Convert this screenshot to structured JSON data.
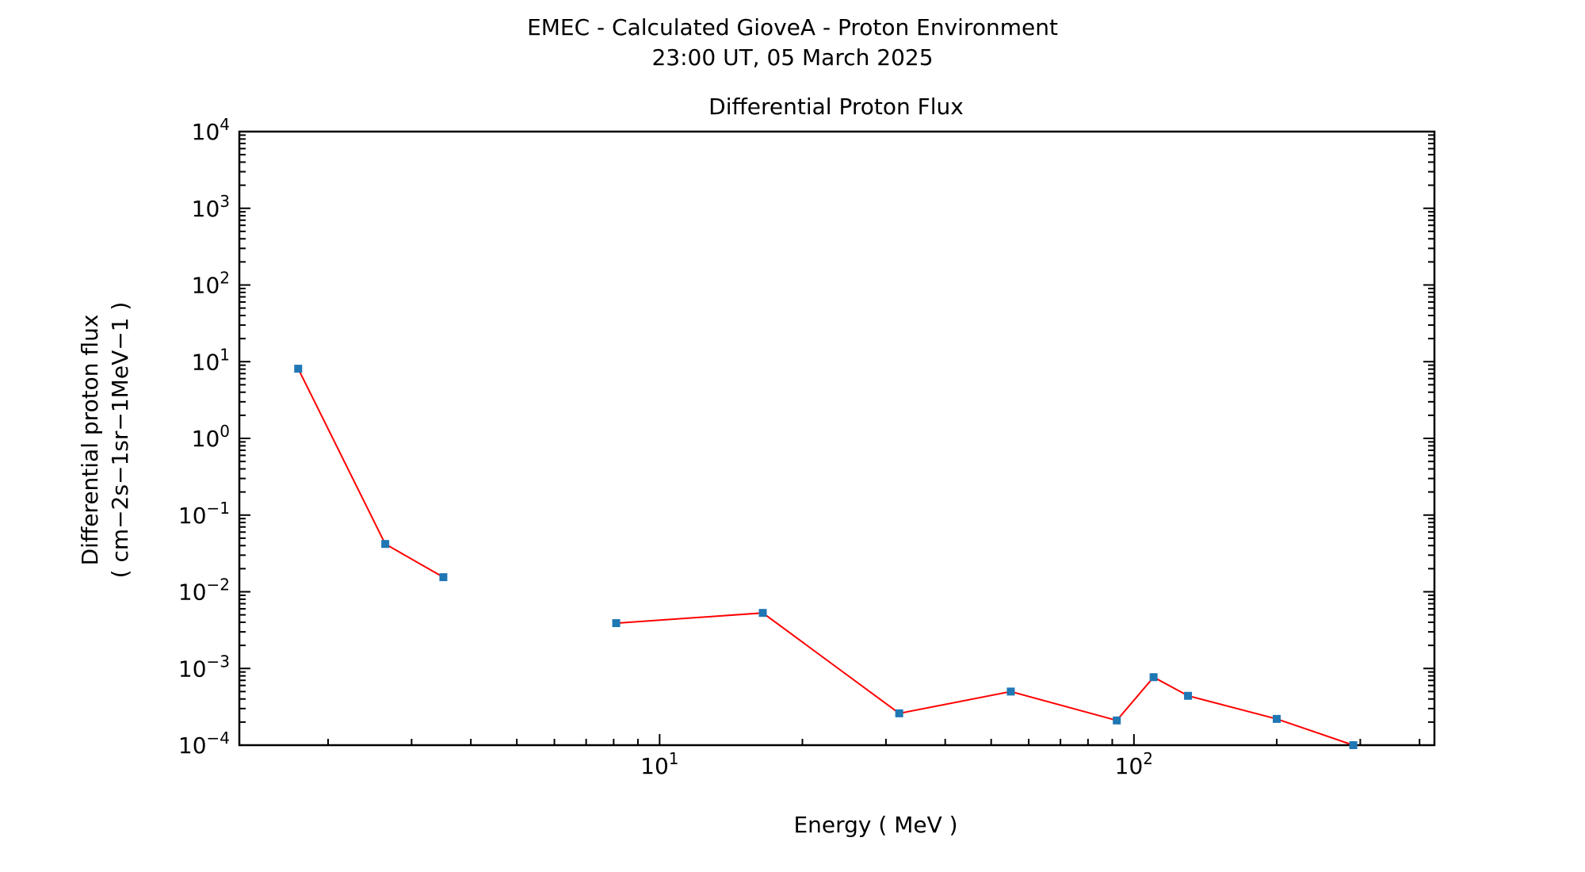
{
  "figure": {
    "title": "EMEC - Calculated GioveA - Proton Environment",
    "subtitle": "23:00 UT, 05 March 2025"
  },
  "colors": {
    "line": "#ff0000",
    "marker": "#1f77b4",
    "axes": "#000000"
  },
  "chart_data": {
    "type": "line",
    "title": "Differential Proton Flux",
    "xlabel": "Energy ( MeV )",
    "ylabel": "Differential proton flux",
    "ylabel_units": "( cm−2s−1sr−1MeV−1 )",
    "xscale": "log",
    "yscale": "log",
    "xlim": [
      1.3,
      430
    ],
    "ylim": [
      0.0001,
      10000
    ],
    "grid": false,
    "legend": "none",
    "x_tick_labels": [
      {
        "value": 10,
        "base": "10",
        "exp": "1"
      },
      {
        "value": 100,
        "base": "10",
        "exp": "2"
      }
    ],
    "y_tick_labels": [
      {
        "value": 10000,
        "base": "10",
        "exp": "4"
      },
      {
        "value": 1000,
        "base": "10",
        "exp": "3"
      },
      {
        "value": 100,
        "base": "10",
        "exp": "2"
      },
      {
        "value": 10,
        "base": "10",
        "exp": "1"
      },
      {
        "value": 1,
        "base": "10",
        "exp": "0"
      },
      {
        "value": 0.1,
        "base": "10",
        "exp": "−1"
      },
      {
        "value": 0.01,
        "base": "10",
        "exp": "−2"
      },
      {
        "value": 0.001,
        "base": "10",
        "exp": "−3"
      },
      {
        "value": 0.0001,
        "base": "10",
        "exp": "−4"
      }
    ],
    "series": [
      {
        "segments": [
          [
            {
              "x": 1.73,
              "y": 8.1
            },
            {
              "x": 2.64,
              "y": 0.042
            },
            {
              "x": 3.5,
              "y": 0.0155
            }
          ],
          [
            {
              "x": 8.1,
              "y": 0.0039
            },
            {
              "x": 16.5,
              "y": 0.0053
            },
            {
              "x": 32,
              "y": 0.00026
            },
            {
              "x": 55,
              "y": 0.0005
            },
            {
              "x": 92,
              "y": 0.00021
            },
            {
              "x": 110,
              "y": 0.00077
            },
            {
              "x": 130,
              "y": 0.00044
            },
            {
              "x": 200,
              "y": 0.00022
            },
            {
              "x": 290,
              "y": 0.0001
            }
          ]
        ]
      }
    ]
  }
}
